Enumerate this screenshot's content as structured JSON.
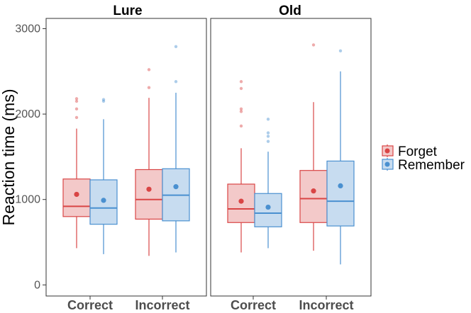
{
  "chart_data": {
    "type": "boxplot",
    "ylabel": "Reaction time (ms)",
    "xlabel": "",
    "ylim": [
      -130,
      3120
    ],
    "yticks": [
      0,
      1000,
      2000,
      3000
    ],
    "ytick_labels": [
      "0",
      "1000",
      "2000",
      "3000"
    ],
    "categories": [
      "Correct",
      "Incorrect"
    ],
    "legend": {
      "position": "right",
      "items": [
        {
          "name": "Forget",
          "color": "#d94545",
          "fill": "#f3c9c9"
        },
        {
          "name": "Remember",
          "color": "#4a90d0",
          "fill": "#c7dcf0"
        }
      ]
    },
    "panels": [
      {
        "title": "Lure",
        "groups": [
          {
            "category": "Correct",
            "series": "Forget",
            "whisker_low": 430,
            "q1": 800,
            "median": 920,
            "q3": 1240,
            "whisker_high": 1830,
            "mean": 1060,
            "outliers": [
              1960,
              2060,
              2150,
              2180
            ]
          },
          {
            "category": "Correct",
            "series": "Remember",
            "whisker_low": 360,
            "q1": 710,
            "median": 900,
            "q3": 1230,
            "whisker_high": 1940,
            "mean": 990,
            "outliers": [
              2150,
              2170
            ]
          },
          {
            "category": "Incorrect",
            "series": "Forget",
            "whisker_low": 340,
            "q1": 770,
            "median": 1000,
            "q3": 1350,
            "whisker_high": 2190,
            "mean": 1120,
            "outliers": [
              2310,
              2520
            ]
          },
          {
            "category": "Incorrect",
            "series": "Remember",
            "whisker_low": 380,
            "q1": 750,
            "median": 1050,
            "q3": 1360,
            "whisker_high": 2250,
            "mean": 1150,
            "outliers": [
              2380,
              2790
            ]
          }
        ]
      },
      {
        "title": "Old",
        "groups": [
          {
            "category": "Correct",
            "series": "Forget",
            "whisker_low": 380,
            "q1": 730,
            "median": 890,
            "q3": 1180,
            "whisker_high": 1600,
            "mean": 980,
            "outliers": [
              1860,
              2030,
              2060,
              2300,
              2380
            ]
          },
          {
            "category": "Correct",
            "series": "Remember",
            "whisker_low": 430,
            "q1": 680,
            "median": 840,
            "q3": 1070,
            "whisker_high": 1560,
            "mean": 910,
            "outliers": [
              1680,
              1740,
              1780,
              1940
            ]
          },
          {
            "category": "Incorrect",
            "series": "Forget",
            "whisker_low": 400,
            "q1": 730,
            "median": 1010,
            "q3": 1340,
            "whisker_high": 2140,
            "mean": 1100,
            "outliers": [
              2810
            ]
          },
          {
            "category": "Incorrect",
            "series": "Remember",
            "whisker_low": 240,
            "q1": 690,
            "median": 980,
            "q3": 1450,
            "whisker_high": 2500,
            "mean": 1160,
            "outliers": [
              2740
            ]
          }
        ]
      }
    ]
  }
}
